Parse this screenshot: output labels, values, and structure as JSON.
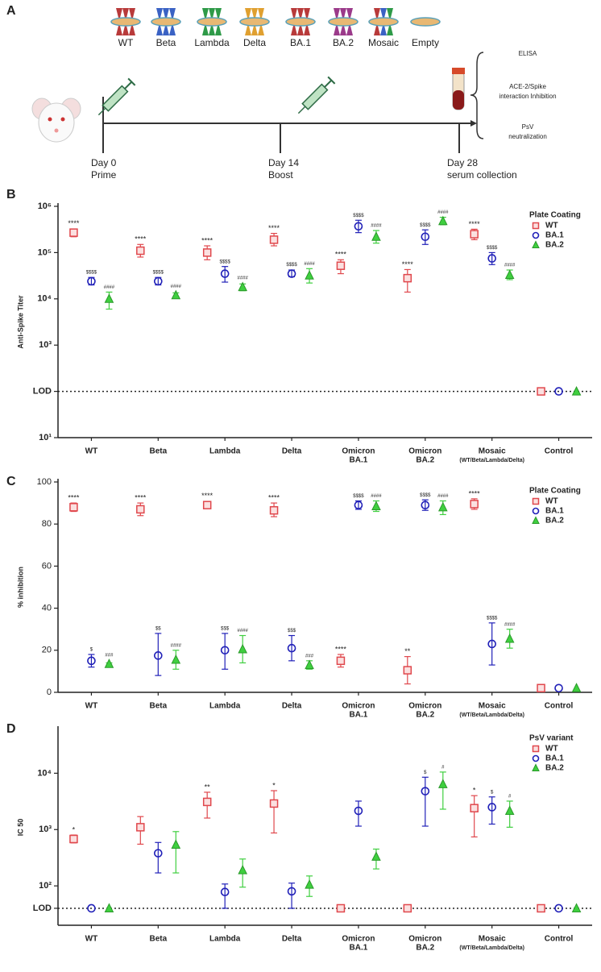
{
  "schematic": {
    "panel": "A",
    "variants": [
      "WT",
      "Beta",
      "Lambda",
      "Delta",
      "BA.1",
      "BA.2",
      "Mosaic",
      "Empty"
    ],
    "timepoints": [
      {
        "day": "Day 0",
        "event": "Prime"
      },
      {
        "day": "Day 14",
        "event": "Boost"
      },
      {
        "day": "Day 28",
        "event": "serum collection"
      }
    ],
    "assays": [
      [
        "ELISA"
      ],
      [
        "ACE-2/Spike",
        "interaction Inhibition"
      ],
      [
        "PsV",
        "neutralization"
      ]
    ]
  },
  "chart_data": [
    {
      "panel": "B",
      "type": "errorbar",
      "y_label": "Anti-Spike Titer",
      "log_scale": true,
      "ylim": [
        10,
        1000000
      ],
      "yticks": [
        {
          "value": 10,
          "label": "10¹"
        },
        {
          "value": 100,
          "label": "LOD"
        },
        {
          "value": 1000,
          "label": "10³"
        },
        {
          "value": 10000,
          "label": "10⁴"
        },
        {
          "value": 100000,
          "label": "10⁵"
        },
        {
          "value": 1000000,
          "label": "10⁶"
        }
      ],
      "lod": 100,
      "categories": [
        [
          "WT"
        ],
        [
          "Beta"
        ],
        [
          "Lambda"
        ],
        [
          "Delta"
        ],
        [
          "Omicron",
          "BA.1"
        ],
        [
          "Omicron",
          "BA.2"
        ],
        [
          "Mosaic",
          "(WT/Beta/Lambda/Delta)"
        ],
        [
          "Control"
        ]
      ],
      "legend_title": "Plate Coating",
      "legend_position": "top-right",
      "series": [
        {
          "name": "WT",
          "color": "#e0474c",
          "marker": "square",
          "values": [
            270000,
            110000,
            100000,
            190000,
            52000,
            28000,
            250000,
            100
          ],
          "lower": [
            220000,
            80000,
            70000,
            140000,
            35000,
            14000,
            190000,
            null
          ],
          "upper": [
            320000,
            150000,
            140000,
            260000,
            70000,
            43000,
            320000,
            null
          ],
          "annotations": [
            "****",
            "****",
            "****",
            "****",
            "****",
            "****",
            "****",
            null
          ]
        },
        {
          "name": "BA.1",
          "color": "#2020b8",
          "marker": "circle",
          "values": [
            24000,
            24000,
            35000,
            35000,
            370000,
            220000,
            75000,
            100
          ],
          "lower": [
            20000,
            20000,
            23000,
            30000,
            270000,
            150000,
            55000,
            null
          ],
          "upper": [
            29000,
            29000,
            50000,
            42000,
            500000,
            310000,
            100000,
            null
          ],
          "annotations": [
            "$$$$",
            "$$$$",
            "$$$$",
            "$$$$",
            "$$$$",
            "$$$$",
            "$$$$",
            null
          ]
        },
        {
          "name": "BA.2",
          "color": "#3fcf3f",
          "marker": "triangle",
          "values": [
            10000,
            12000,
            18000,
            32000,
            220000,
            480000,
            33000,
            100
          ],
          "lower": [
            6000,
            10500,
            15000,
            22000,
            160000,
            400000,
            26000,
            null
          ],
          "upper": [
            14000,
            13500,
            21000,
            45000,
            300000,
            580000,
            42000,
            null
          ],
          "annotations": [
            "####",
            "####",
            "####",
            "####",
            "####",
            "####",
            "####",
            null
          ]
        }
      ]
    },
    {
      "panel": "C",
      "type": "errorbar",
      "y_label": "% inhibition",
      "log_scale": false,
      "ylim": [
        0,
        100
      ],
      "yticks": [
        0,
        20,
        40,
        60,
        80,
        100
      ],
      "categories": [
        [
          "WT"
        ],
        [
          "Beta"
        ],
        [
          "Lambda"
        ],
        [
          "Delta"
        ],
        [
          "Omicron",
          "BA.1"
        ],
        [
          "Omicron",
          "BA.2"
        ],
        [
          "Mosaic",
          "(WT/Beta/Lambda/Delta)"
        ],
        [
          "Control"
        ]
      ],
      "legend_title": "Plate Coating",
      "legend_position": "top-right",
      "series": [
        {
          "name": "WT",
          "color": "#e0474c",
          "marker": "square",
          "values": [
            88,
            87,
            89,
            86.5,
            15,
            10.5,
            89.5,
            2
          ],
          "lower": [
            86,
            84,
            88,
            83.5,
            12,
            4,
            87,
            null
          ],
          "upper": [
            90,
            90,
            90.5,
            90,
            18,
            17,
            92,
            null
          ],
          "annotations": [
            "****",
            "****",
            "****",
            "****",
            "****",
            "**",
            "****",
            null
          ]
        },
        {
          "name": "BA.1",
          "color": "#2020b8",
          "marker": "circle",
          "values": [
            15,
            17.5,
            20,
            21,
            89,
            89,
            23,
            2
          ],
          "lower": [
            12,
            8,
            11,
            15,
            87,
            86.5,
            13,
            null
          ],
          "upper": [
            18,
            28,
            28,
            27,
            91,
            91.5,
            33,
            null
          ],
          "annotations": [
            "$",
            "$$",
            "$$$",
            "$$$",
            "$$$$",
            "$$$$",
            "$$$$",
            null
          ]
        },
        {
          "name": "BA.2",
          "color": "#3fcf3f",
          "marker": "triangle",
          "values": [
            13.5,
            15.5,
            20.5,
            13,
            88.5,
            88,
            25.5,
            2
          ],
          "lower": [
            13,
            11,
            14,
            11,
            86,
            84.5,
            21,
            null
          ],
          "upper": [
            14,
            20,
            27,
            15,
            91,
            91,
            30,
            null
          ],
          "annotations": [
            "###",
            "####",
            "####",
            "###",
            "####",
            "####",
            "####",
            null
          ]
        }
      ]
    },
    {
      "panel": "D",
      "type": "errorbar",
      "y_label": "IC 50",
      "log_scale": true,
      "ylim": [
        20,
        60000
      ],
      "yticks": [
        {
          "value": 40,
          "label": "LOD"
        },
        {
          "value": 100,
          "label": "10²"
        },
        {
          "value": 1000,
          "label": "10³"
        },
        {
          "value": 10000,
          "label": "10⁴"
        }
      ],
      "lod": 40,
      "categories": [
        [
          "WT"
        ],
        [
          "Beta"
        ],
        [
          "Lambda"
        ],
        [
          "Delta"
        ],
        [
          "Omicron",
          "BA.1"
        ],
        [
          "Omicron",
          "BA.2"
        ],
        [
          "Mosaic",
          "(WT/Beta/Lambda/Delta)"
        ],
        [
          "Control"
        ]
      ],
      "legend_title": "PsV variant",
      "legend_position": "top-right",
      "series": [
        {
          "name": "WT",
          "color": "#e0474c",
          "marker": "square",
          "values": [
            680,
            1100,
            3100,
            2900,
            40,
            40,
            2400,
            40
          ],
          "lower": [
            580,
            550,
            1600,
            870,
            null,
            null,
            740,
            null
          ],
          "upper": [
            800,
            1700,
            4600,
            4900,
            null,
            null,
            4000,
            null
          ],
          "annotations": [
            "*",
            null,
            "**",
            "*",
            null,
            null,
            "*",
            null
          ]
        },
        {
          "name": "BA.1",
          "color": "#2020b8",
          "marker": "circle",
          "values": [
            40,
            380,
            78,
            80,
            2150,
            4800,
            2500,
            40
          ],
          "lower": [
            null,
            170,
            40,
            40,
            1150,
            1150,
            1250,
            null
          ],
          "upper": [
            null,
            590,
            108,
            112,
            3200,
            8500,
            3800,
            null
          ],
          "annotations": [
            null,
            null,
            null,
            null,
            null,
            "$",
            "$",
            null
          ]
        },
        {
          "name": "BA.2",
          "color": "#3fcf3f",
          "marker": "triangle",
          "values": [
            40,
            540,
            190,
            105,
            330,
            6400,
            2150,
            40
          ],
          "lower": [
            null,
            170,
            95,
            65,
            200,
            2300,
            1100,
            null
          ],
          "upper": [
            null,
            920,
            300,
            150,
            450,
            10500,
            3200,
            null
          ],
          "annotations": [
            null,
            null,
            null,
            null,
            null,
            "#",
            "#",
            null
          ]
        }
      ]
    }
  ]
}
